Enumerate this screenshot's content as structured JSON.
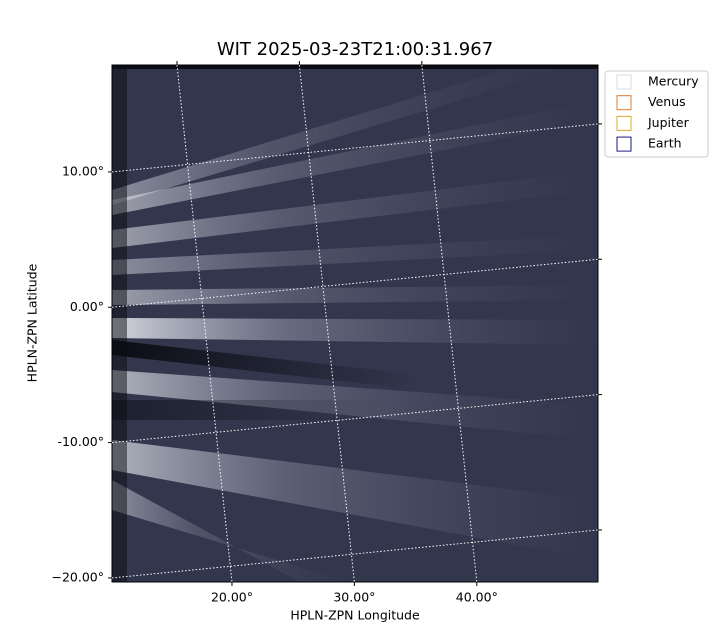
{
  "chart_data": {
    "type": "image",
    "title": "WIT 2025-03-23T21:00:31.967",
    "x_label": "HPLN-ZPN Longitude",
    "y_label": "HPLN-ZPN Latitude",
    "xlim": [
      10.2,
      49.9
    ],
    "ylim": [
      -20.3,
      17.9
    ],
    "xticks": [
      {
        "value": 20,
        "label": "20.00°"
      },
      {
        "value": 30,
        "label": "30.00°"
      },
      {
        "value": 40,
        "label": "40.00°"
      }
    ],
    "yticks": [
      {
        "value": 10,
        "label": "10.00°"
      },
      {
        "value": 0,
        "label": "0.00°"
      },
      {
        "value": -10,
        "label": "-10.00°"
      },
      {
        "value": -20,
        "label": "−20.00°"
      }
    ],
    "grid": true,
    "legend_position": "upper-right-outside",
    "series": [
      {
        "name": "Mercury",
        "color": "#d9d9d9"
      },
      {
        "name": "Venus",
        "color": "#e07b2c"
      },
      {
        "name": "Jupiter",
        "color": "#e0a82c"
      },
      {
        "name": "Earth",
        "color": "#1a1a80"
      }
    ]
  }
}
